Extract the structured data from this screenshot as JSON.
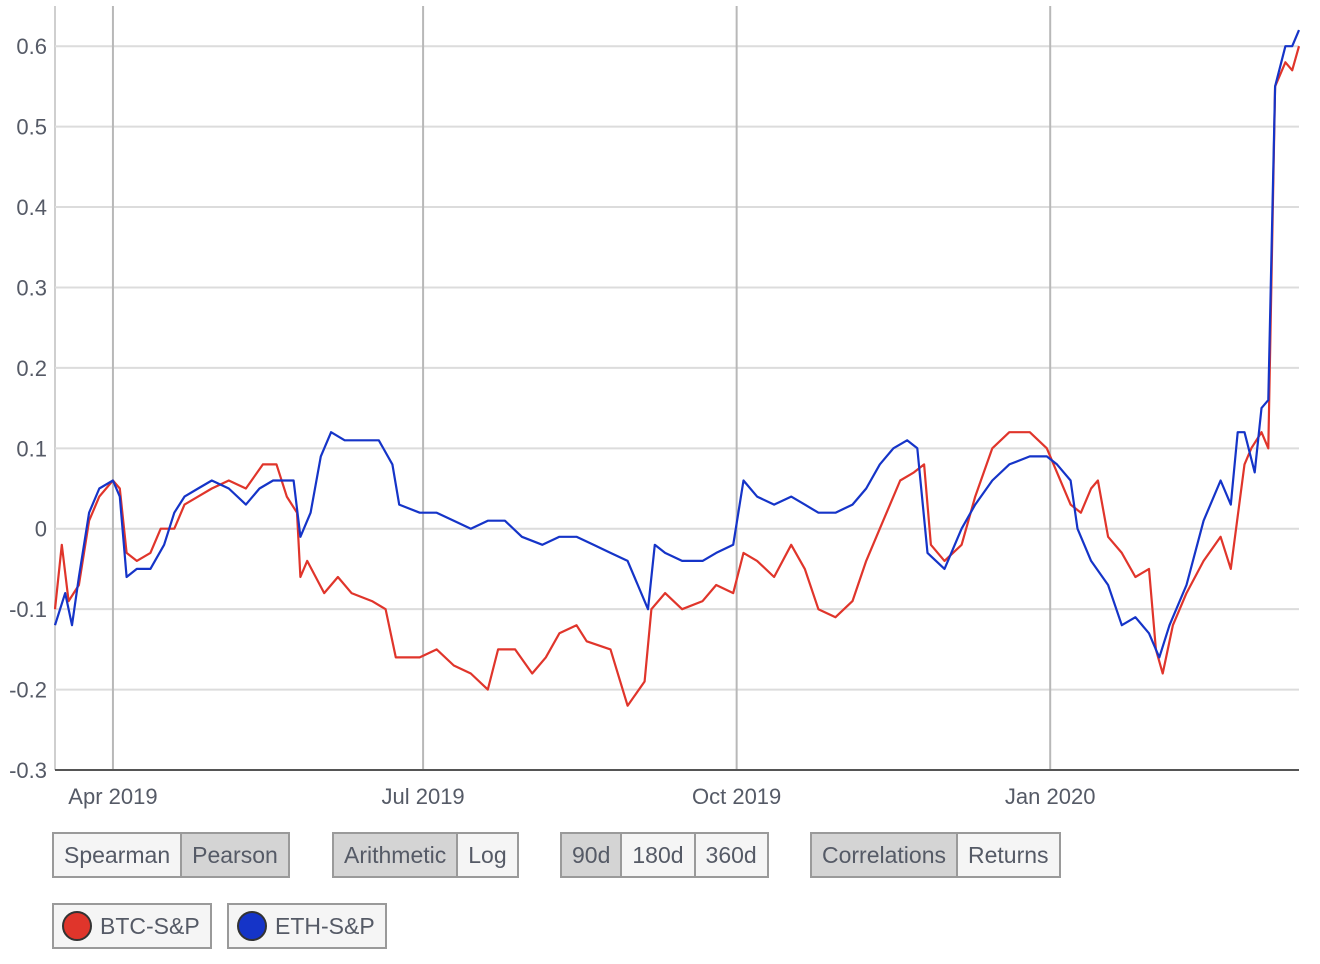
{
  "chart_data": {
    "type": "line",
    "x_axis": {
      "type": "date",
      "start": "2019-03-15",
      "end": "2020-03-14",
      "ticks": [
        {
          "date": "2019-04-01",
          "label": "Apr 2019"
        },
        {
          "date": "2019-07-01",
          "label": "Jul 2019"
        },
        {
          "date": "2019-10-01",
          "label": "Oct 2019"
        },
        {
          "date": "2020-01-01",
          "label": "Jan 2020"
        }
      ]
    },
    "y_axis": {
      "ylim": [
        -0.3,
        0.65
      ],
      "ticks": [
        -0.3,
        -0.2,
        -0.1,
        0,
        0.1,
        0.2,
        0.3,
        0.4,
        0.5,
        0.6
      ],
      "tick_labels": [
        "-0.3",
        "-0.2",
        "-0.1",
        "0",
        "0.1",
        "0.2",
        "0.3",
        "0.4",
        "0.5",
        "0.6"
      ]
    },
    "grid": {
      "horizontal": true,
      "vertical": true
    },
    "series": [
      {
        "name": "BTC-S&P",
        "color": "#e0352b",
        "points": [
          [
            "2019-03-15",
            -0.1
          ],
          [
            "2019-03-17",
            -0.02
          ],
          [
            "2019-03-19",
            -0.09
          ],
          [
            "2019-03-22",
            -0.07
          ],
          [
            "2019-03-25",
            0.01
          ],
          [
            "2019-03-28",
            0.04
          ],
          [
            "2019-04-01",
            0.06
          ],
          [
            "2019-04-03",
            0.05
          ],
          [
            "2019-04-05",
            -0.03
          ],
          [
            "2019-04-08",
            -0.04
          ],
          [
            "2019-04-12",
            -0.03
          ],
          [
            "2019-04-15",
            0.0
          ],
          [
            "2019-04-19",
            0.0
          ],
          [
            "2019-04-22",
            0.03
          ],
          [
            "2019-04-26",
            0.04
          ],
          [
            "2019-04-30",
            0.05
          ],
          [
            "2019-05-05",
            0.06
          ],
          [
            "2019-05-10",
            0.05
          ],
          [
            "2019-05-15",
            0.08
          ],
          [
            "2019-05-19",
            0.08
          ],
          [
            "2019-05-22",
            0.04
          ],
          [
            "2019-05-25",
            0.02
          ],
          [
            "2019-05-26",
            -0.06
          ],
          [
            "2019-05-28",
            -0.04
          ],
          [
            "2019-06-02",
            -0.08
          ],
          [
            "2019-06-06",
            -0.06
          ],
          [
            "2019-06-10",
            -0.08
          ],
          [
            "2019-06-16",
            -0.09
          ],
          [
            "2019-06-20",
            -0.1
          ],
          [
            "2019-06-23",
            -0.16
          ],
          [
            "2019-06-30",
            -0.16
          ],
          [
            "2019-07-05",
            -0.15
          ],
          [
            "2019-07-10",
            -0.17
          ],
          [
            "2019-07-15",
            -0.18
          ],
          [
            "2019-07-20",
            -0.2
          ],
          [
            "2019-07-23",
            -0.15
          ],
          [
            "2019-07-28",
            -0.15
          ],
          [
            "2019-08-02",
            -0.18
          ],
          [
            "2019-08-06",
            -0.16
          ],
          [
            "2019-08-10",
            -0.13
          ],
          [
            "2019-08-15",
            -0.12
          ],
          [
            "2019-08-18",
            -0.14
          ],
          [
            "2019-08-25",
            -0.15
          ],
          [
            "2019-08-30",
            -0.22
          ],
          [
            "2019-09-04",
            -0.19
          ],
          [
            "2019-09-06",
            -0.1
          ],
          [
            "2019-09-10",
            -0.08
          ],
          [
            "2019-09-15",
            -0.1
          ],
          [
            "2019-09-21",
            -0.09
          ],
          [
            "2019-09-25",
            -0.07
          ],
          [
            "2019-09-30",
            -0.08
          ],
          [
            "2019-10-03",
            -0.03
          ],
          [
            "2019-10-07",
            -0.04
          ],
          [
            "2019-10-12",
            -0.06
          ],
          [
            "2019-10-17",
            -0.02
          ],
          [
            "2019-10-21",
            -0.05
          ],
          [
            "2019-10-25",
            -0.1
          ],
          [
            "2019-10-30",
            -0.11
          ],
          [
            "2019-11-04",
            -0.09
          ],
          [
            "2019-11-08",
            -0.04
          ],
          [
            "2019-11-12",
            0.0
          ],
          [
            "2019-11-18",
            0.06
          ],
          [
            "2019-11-22",
            0.07
          ],
          [
            "2019-11-25",
            0.08
          ],
          [
            "2019-11-27",
            -0.02
          ],
          [
            "2019-12-01",
            -0.04
          ],
          [
            "2019-12-06",
            -0.02
          ],
          [
            "2019-12-10",
            0.04
          ],
          [
            "2019-12-15",
            0.1
          ],
          [
            "2019-12-20",
            0.12
          ],
          [
            "2019-12-26",
            0.12
          ],
          [
            "2019-12-31",
            0.1
          ],
          [
            "2020-01-03",
            0.07
          ],
          [
            "2020-01-07",
            0.03
          ],
          [
            "2020-01-10",
            0.02
          ],
          [
            "2020-01-13",
            0.05
          ],
          [
            "2020-01-15",
            0.06
          ],
          [
            "2020-01-18",
            -0.01
          ],
          [
            "2020-01-22",
            -0.03
          ],
          [
            "2020-01-26",
            -0.06
          ],
          [
            "2020-01-30",
            -0.05
          ],
          [
            "2020-02-01",
            -0.15
          ],
          [
            "2020-02-03",
            -0.18
          ],
          [
            "2020-02-06",
            -0.12
          ],
          [
            "2020-02-10",
            -0.08
          ],
          [
            "2020-02-15",
            -0.04
          ],
          [
            "2020-02-20",
            -0.01
          ],
          [
            "2020-02-23",
            -0.05
          ],
          [
            "2020-02-27",
            0.08
          ],
          [
            "2020-02-29",
            0.1
          ],
          [
            "2020-03-03",
            0.12
          ],
          [
            "2020-03-05",
            0.1
          ],
          [
            "2020-03-07",
            0.55
          ],
          [
            "2020-03-10",
            0.58
          ],
          [
            "2020-03-12",
            0.57
          ],
          [
            "2020-03-14",
            0.6
          ]
        ]
      },
      {
        "name": "ETH-S&P",
        "color": "#1534c8",
        "points": [
          [
            "2019-03-15",
            -0.12
          ],
          [
            "2019-03-18",
            -0.08
          ],
          [
            "2019-03-20",
            -0.12
          ],
          [
            "2019-03-22",
            -0.06
          ],
          [
            "2019-03-25",
            0.02
          ],
          [
            "2019-03-28",
            0.05
          ],
          [
            "2019-04-01",
            0.06
          ],
          [
            "2019-04-03",
            0.04
          ],
          [
            "2019-04-05",
            -0.06
          ],
          [
            "2019-04-08",
            -0.05
          ],
          [
            "2019-04-12",
            -0.05
          ],
          [
            "2019-04-16",
            -0.02
          ],
          [
            "2019-04-19",
            0.02
          ],
          [
            "2019-04-22",
            0.04
          ],
          [
            "2019-04-26",
            0.05
          ],
          [
            "2019-04-30",
            0.06
          ],
          [
            "2019-05-05",
            0.05
          ],
          [
            "2019-05-10",
            0.03
          ],
          [
            "2019-05-14",
            0.05
          ],
          [
            "2019-05-18",
            0.06
          ],
          [
            "2019-05-24",
            0.06
          ],
          [
            "2019-05-26",
            -0.01
          ],
          [
            "2019-05-29",
            0.02
          ],
          [
            "2019-06-01",
            0.09
          ],
          [
            "2019-06-04",
            0.12
          ],
          [
            "2019-06-08",
            0.11
          ],
          [
            "2019-06-14",
            0.11
          ],
          [
            "2019-06-18",
            0.11
          ],
          [
            "2019-06-22",
            0.08
          ],
          [
            "2019-06-24",
            0.03
          ],
          [
            "2019-06-30",
            0.02
          ],
          [
            "2019-07-05",
            0.02
          ],
          [
            "2019-07-10",
            0.01
          ],
          [
            "2019-07-15",
            0.0
          ],
          [
            "2019-07-20",
            0.01
          ],
          [
            "2019-07-25",
            0.01
          ],
          [
            "2019-07-30",
            -0.01
          ],
          [
            "2019-08-05",
            -0.02
          ],
          [
            "2019-08-10",
            -0.01
          ],
          [
            "2019-08-15",
            -0.01
          ],
          [
            "2019-08-20",
            -0.02
          ],
          [
            "2019-08-25",
            -0.03
          ],
          [
            "2019-08-30",
            -0.04
          ],
          [
            "2019-09-02",
            -0.07
          ],
          [
            "2019-09-05",
            -0.1
          ],
          [
            "2019-09-07",
            -0.02
          ],
          [
            "2019-09-10",
            -0.03
          ],
          [
            "2019-09-15",
            -0.04
          ],
          [
            "2019-09-21",
            -0.04
          ],
          [
            "2019-09-25",
            -0.03
          ],
          [
            "2019-09-30",
            -0.02
          ],
          [
            "2019-10-03",
            0.06
          ],
          [
            "2019-10-07",
            0.04
          ],
          [
            "2019-10-12",
            0.03
          ],
          [
            "2019-10-17",
            0.04
          ],
          [
            "2019-10-21",
            0.03
          ],
          [
            "2019-10-25",
            0.02
          ],
          [
            "2019-10-30",
            0.02
          ],
          [
            "2019-11-04",
            0.03
          ],
          [
            "2019-11-08",
            0.05
          ],
          [
            "2019-11-12",
            0.08
          ],
          [
            "2019-11-16",
            0.1
          ],
          [
            "2019-11-20",
            0.11
          ],
          [
            "2019-11-23",
            0.1
          ],
          [
            "2019-11-26",
            -0.03
          ],
          [
            "2019-12-01",
            -0.05
          ],
          [
            "2019-12-06",
            0.0
          ],
          [
            "2019-12-10",
            0.03
          ],
          [
            "2019-12-15",
            0.06
          ],
          [
            "2019-12-20",
            0.08
          ],
          [
            "2019-12-26",
            0.09
          ],
          [
            "2019-12-31",
            0.09
          ],
          [
            "2020-01-03",
            0.08
          ],
          [
            "2020-01-07",
            0.06
          ],
          [
            "2020-01-09",
            0.0
          ],
          [
            "2020-01-13",
            -0.04
          ],
          [
            "2020-01-18",
            -0.07
          ],
          [
            "2020-01-22",
            -0.12
          ],
          [
            "2020-01-26",
            -0.11
          ],
          [
            "2020-01-30",
            -0.13
          ],
          [
            "2020-02-02",
            -0.16
          ],
          [
            "2020-02-05",
            -0.12
          ],
          [
            "2020-02-10",
            -0.07
          ],
          [
            "2020-02-15",
            0.01
          ],
          [
            "2020-02-20",
            0.06
          ],
          [
            "2020-02-23",
            0.03
          ],
          [
            "2020-02-25",
            0.12
          ],
          [
            "2020-02-27",
            0.12
          ],
          [
            "2020-03-01",
            0.07
          ],
          [
            "2020-03-03",
            0.15
          ],
          [
            "2020-03-05",
            0.16
          ],
          [
            "2020-03-07",
            0.55
          ],
          [
            "2020-03-10",
            0.6
          ],
          [
            "2020-03-12",
            0.6
          ],
          [
            "2020-03-14",
            0.62
          ]
        ]
      }
    ]
  },
  "controls": {
    "method": {
      "options": [
        "Spearman",
        "Pearson"
      ],
      "active": "Pearson"
    },
    "scale": {
      "options": [
        "Arithmetic",
        "Log"
      ],
      "active": "Arithmetic"
    },
    "window": {
      "options": [
        "90d",
        "180d",
        "360d"
      ],
      "active": "90d"
    },
    "view": {
      "options": [
        "Correlations",
        "Returns"
      ],
      "active": "Correlations"
    }
  },
  "legend": [
    {
      "label": "BTC-S&P",
      "color": "#e0352b"
    },
    {
      "label": "ETH-S&P",
      "color": "#1534c8"
    }
  ]
}
